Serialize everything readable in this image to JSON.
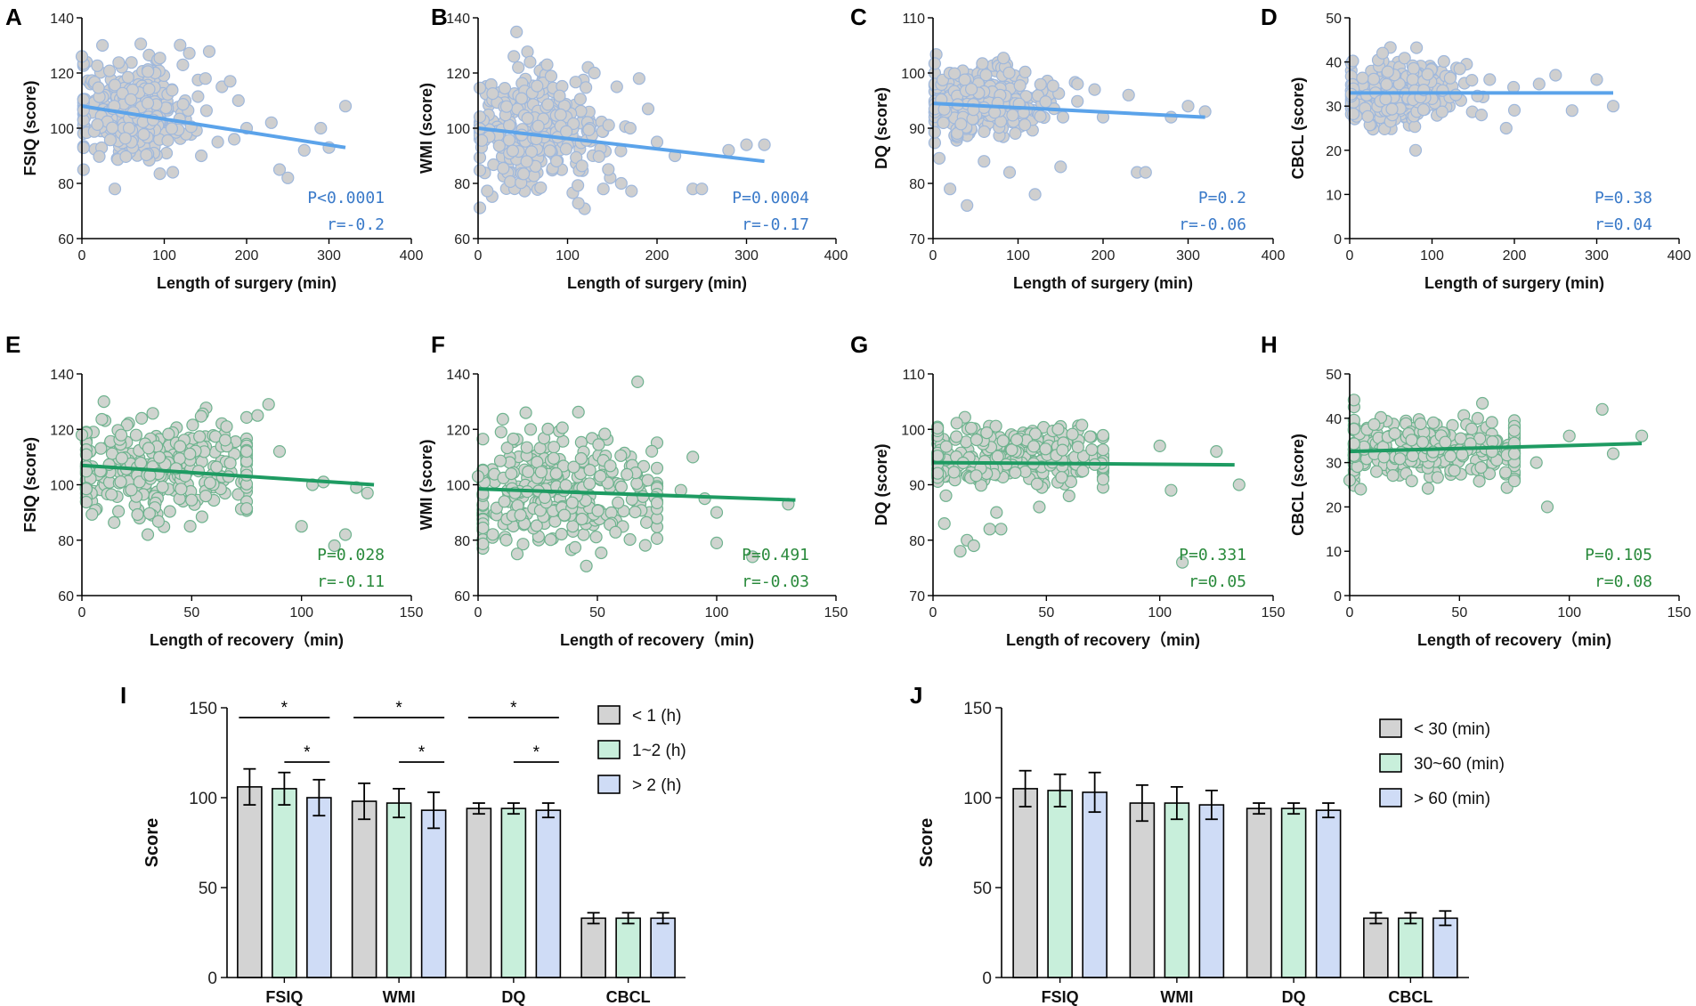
{
  "colors": {
    "blue_line": "#5ba3ea",
    "blue_point_fill": "#cfcfcf",
    "blue_point_stroke": "#9fb8dc",
    "blue_text": "#3a7ac9",
    "green_line": "#1e9b62",
    "green_point_fill": "#cfd4cf",
    "green_point_stroke": "#6fb38f",
    "green_text": "#2a8a3c",
    "bar_gray": "#d3d3d3",
    "bar_green": "#c8efdb",
    "bar_blue": "#cfdcf6"
  },
  "chart_data": [
    {
      "panel": "A",
      "type": "scatter",
      "color_scheme": "blue",
      "xlabel": "Length of surgery (min)",
      "ylabel": "FSIQ (score)",
      "xlim": [
        0,
        400
      ],
      "ylim": [
        60,
        140
      ],
      "xticks": [
        "0",
        "100",
        "200",
        "300",
        "400"
      ],
      "yticks": [
        "60",
        "80",
        "100",
        "120",
        "140"
      ],
      "cloud": {
        "x_mean": 60,
        "x_sd": 35,
        "y_mean": 106,
        "y_sd": 9
      },
      "extra_points": [
        [
          0,
          126
        ],
        [
          25,
          130
        ],
        [
          40,
          78
        ],
        [
          150,
          118
        ],
        [
          170,
          115
        ],
        [
          180,
          117
        ],
        [
          190,
          110
        ],
        [
          200,
          100
        ],
        [
          230,
          102
        ],
        [
          240,
          85
        ],
        [
          250,
          82
        ],
        [
          270,
          92
        ],
        [
          290,
          100
        ],
        [
          300,
          93
        ],
        [
          320,
          108
        ],
        [
          165,
          95
        ],
        [
          145,
          90
        ],
        [
          185,
          96
        ]
      ],
      "fit": {
        "x": [
          0,
          320
        ],
        "y": [
          108,
          93
        ]
      },
      "annotations": [
        "P<0.0001",
        "r=-0.2"
      ]
    },
    {
      "panel": "B",
      "type": "scatter",
      "color_scheme": "blue",
      "xlabel": "Length of surgery (min)",
      "ylabel": "WMI (score)",
      "xlim": [
        0,
        400
      ],
      "ylim": [
        60,
        140
      ],
      "xticks": [
        "0",
        "100",
        "200",
        "300",
        "400"
      ],
      "yticks": [
        "60",
        "80",
        "100",
        "120",
        "140"
      ],
      "cloud": {
        "x_mean": 60,
        "x_sd": 38,
        "y_mean": 98,
        "y_sd": 10
      },
      "extra_points": [
        [
          40,
          126
        ],
        [
          45,
          122
        ],
        [
          130,
          120
        ],
        [
          155,
          115
        ],
        [
          180,
          118
        ],
        [
          190,
          107
        ],
        [
          200,
          95
        ],
        [
          220,
          90
        ],
        [
          240,
          78
        ],
        [
          250,
          78
        ],
        [
          280,
          92
        ],
        [
          300,
          94
        ],
        [
          320,
          94
        ],
        [
          160,
          80
        ],
        [
          140,
          78
        ],
        [
          170,
          100
        ]
      ],
      "fit": {
        "x": [
          0,
          320
        ],
        "y": [
          100,
          88
        ]
      },
      "annotations": [
        "P=0.0004",
        "r=-0.17"
      ]
    },
    {
      "panel": "C",
      "type": "scatter",
      "color_scheme": "blue",
      "xlabel": "Length of surgery (min)",
      "ylabel": "DQ (score)",
      "xlim": [
        0,
        400
      ],
      "ylim": [
        70,
        110
      ],
      "xticks": [
        "0",
        "100",
        "200",
        "300",
        "400"
      ],
      "yticks": [
        "70",
        "80",
        "90",
        "100",
        "110"
      ],
      "cloud": {
        "x_mean": 60,
        "x_sd": 35,
        "y_mean": 95,
        "y_sd": 3
      },
      "extra_points": [
        [
          20,
          79
        ],
        [
          40,
          76
        ],
        [
          120,
          78
        ],
        [
          150,
          83
        ],
        [
          90,
          82
        ],
        [
          60,
          84
        ],
        [
          170,
          98
        ],
        [
          190,
          97
        ],
        [
          200,
          92
        ],
        [
          230,
          96
        ],
        [
          240,
          82
        ],
        [
          250,
          82
        ],
        [
          280,
          92
        ],
        [
          300,
          94
        ],
        [
          320,
          93
        ]
      ],
      "fit": {
        "x": [
          0,
          320
        ],
        "y": [
          94.5,
          92
        ]
      },
      "annotations": [
        "P=0.2",
        "r=-0.06"
      ]
    },
    {
      "panel": "D",
      "type": "scatter",
      "color_scheme": "blue",
      "xlabel": "Length of surgery (min)",
      "ylabel": "CBCL (score)",
      "xlim": [
        0,
        400
      ],
      "ylim": [
        0,
        50
      ],
      "xticks": [
        "0",
        "100",
        "200",
        "300",
        "400"
      ],
      "yticks": [
        "0",
        "10",
        "20",
        "30",
        "40",
        "50"
      ],
      "cloud": {
        "x_mean": 65,
        "x_sd": 40,
        "y_mean": 33,
        "y_sd": 3.5
      },
      "extra_points": [
        [
          80,
          20
        ],
        [
          40,
          42
        ],
        [
          190,
          25
        ],
        [
          230,
          35
        ],
        [
          250,
          37
        ],
        [
          270,
          29
        ],
        [
          300,
          36
        ],
        [
          320,
          30
        ],
        [
          160,
          28
        ],
        [
          170,
          36
        ]
      ],
      "fit": {
        "x": [
          0,
          320
        ],
        "y": [
          33,
          33
        ]
      },
      "annotations": [
        "P=0.38",
        "r=0.04"
      ]
    },
    {
      "panel": "E",
      "type": "scatter",
      "color_scheme": "green",
      "xlabel": "Length of recovery（min)",
      "ylabel": "FSIQ (score)",
      "xlim": [
        0,
        150
      ],
      "ylim": [
        60,
        140
      ],
      "xticks": [
        "0",
        "50",
        "100",
        "150"
      ],
      "yticks": [
        "60",
        "80",
        "100",
        "120",
        "140"
      ],
      "cloud": {
        "x_mean": 35,
        "x_sd": 25,
        "y_mean": 105,
        "y_sd": 9
      },
      "extra_points": [
        [
          0,
          118
        ],
        [
          10,
          130
        ],
        [
          85,
          129
        ],
        [
          80,
          125
        ],
        [
          90,
          112
        ],
        [
          100,
          85
        ],
        [
          115,
          78
        ],
        [
          120,
          82
        ],
        [
          125,
          99
        ],
        [
          130,
          97
        ],
        [
          105,
          100
        ],
        [
          110,
          101
        ],
        [
          30,
          82
        ]
      ],
      "fit": {
        "x": [
          0,
          133
        ],
        "y": [
          107,
          100
        ]
      },
      "annotations": [
        "P=0.028",
        "r=-0.11"
      ]
    },
    {
      "panel": "F",
      "type": "scatter",
      "color_scheme": "green",
      "xlabel": "Length of recovery（min)",
      "ylabel": "WMI (score)",
      "xlim": [
        0,
        150
      ],
      "ylim": [
        60,
        140
      ],
      "xticks": [
        "0",
        "50",
        "100",
        "150"
      ],
      "yticks": [
        "60",
        "80",
        "100",
        "120",
        "140"
      ],
      "cloud": {
        "x_mean": 35,
        "x_sd": 25,
        "y_mean": 97,
        "y_sd": 10
      },
      "extra_points": [
        [
          0,
          103
        ],
        [
          20,
          126
        ],
        [
          22,
          120
        ],
        [
          90,
          110
        ],
        [
          100,
          90
        ],
        [
          100,
          79
        ],
        [
          115,
          74
        ],
        [
          130,
          93
        ],
        [
          85,
          98
        ],
        [
          95,
          95
        ]
      ],
      "fit": {
        "x": [
          0,
          133
        ],
        "y": [
          98.5,
          94.5
        ]
      },
      "annotations": [
        "P=0.491",
        "r=-0.03"
      ]
    },
    {
      "panel": "G",
      "type": "scatter",
      "color_scheme": "green",
      "xlabel": "Length of recovery（min)",
      "ylabel": "DQ (score)",
      "xlim": [
        0,
        150
      ],
      "ylim": [
        70,
        110
      ],
      "xticks": [
        "0",
        "50",
        "100",
        "150"
      ],
      "yticks": [
        "70",
        "80",
        "90",
        "100",
        "110"
      ],
      "cloud": {
        "x_mean": 35,
        "x_sd": 25,
        "y_mean": 95,
        "y_sd": 3
      },
      "extra_points": [
        [
          5,
          83
        ],
        [
          15,
          80
        ],
        [
          12,
          78
        ],
        [
          18,
          79
        ],
        [
          25,
          82
        ],
        [
          30,
          82
        ],
        [
          28,
          85
        ],
        [
          60,
          88
        ],
        [
          110,
          76
        ],
        [
          125,
          96
        ],
        [
          135,
          90
        ],
        [
          100,
          97
        ],
        [
          105,
          89
        ]
      ],
      "fit": {
        "x": [
          0,
          133
        ],
        "y": [
          94,
          93.6
        ]
      },
      "annotations": [
        "P=0.331",
        "r=0.05"
      ]
    },
    {
      "panel": "H",
      "type": "scatter",
      "color_scheme": "green",
      "xlabel": "Length of recovery（min)",
      "ylabel": "CBCL (score)",
      "xlim": [
        0,
        150
      ],
      "ylim": [
        0,
        50
      ],
      "xticks": [
        "0",
        "50",
        "100",
        "150"
      ],
      "yticks": [
        "0",
        "10",
        "20",
        "30",
        "40",
        "50"
      ],
      "cloud": {
        "x_mean": 40,
        "x_sd": 28,
        "y_mean": 33,
        "y_sd": 3.5
      },
      "extra_points": [
        [
          0,
          26
        ],
        [
          90,
          20
        ],
        [
          115,
          42
        ],
        [
          120,
          32
        ],
        [
          133,
          36
        ],
        [
          100,
          36
        ],
        [
          85,
          30
        ],
        [
          5,
          24
        ]
      ],
      "fit": {
        "x": [
          0,
          133
        ],
        "y": [
          32.5,
          34.3
        ]
      },
      "annotations": [
        "P=0.105",
        "r=0.08"
      ]
    },
    {
      "panel": "I",
      "type": "bar",
      "categories": [
        "FSIQ",
        "WMI",
        "DQ",
        "CBCL"
      ],
      "ylabel": "Score",
      "ylim": [
        0,
        150
      ],
      "yticks": [
        "0",
        "50",
        "100",
        "150"
      ],
      "series": [
        {
          "name": "< 1 (h)",
          "values": [
            106,
            98,
            94,
            33
          ],
          "errors": [
            10,
            10,
            3,
            3
          ]
        },
        {
          "name": "1~2 (h)",
          "values": [
            105,
            97,
            94,
            33
          ],
          "errors": [
            9,
            8,
            3,
            3
          ]
        },
        {
          "name": "> 2 (h)",
          "values": [
            100,
            93,
            93,
            33
          ],
          "errors": [
            10,
            10,
            4,
            3
          ]
        }
      ],
      "significance": [
        {
          "category": 0,
          "from": 0,
          "to": 2,
          "level": 1,
          "label": "*"
        },
        {
          "category": 0,
          "from": 1,
          "to": 2,
          "level": 0,
          "label": "*"
        },
        {
          "category": 1,
          "from": 0,
          "to": 2,
          "level": 1,
          "label": "*"
        },
        {
          "category": 1,
          "from": 1,
          "to": 2,
          "level": 0,
          "label": "*"
        },
        {
          "category": 2,
          "from": 0,
          "to": 2,
          "level": 1,
          "label": "*"
        },
        {
          "category": 2,
          "from": 1,
          "to": 2,
          "level": 0,
          "label": "*"
        }
      ]
    },
    {
      "panel": "J",
      "type": "bar",
      "categories": [
        "FSIQ",
        "WMI",
        "DQ",
        "CBCL"
      ],
      "ylabel": "Score",
      "ylim": [
        0,
        150
      ],
      "yticks": [
        "0",
        "50",
        "100",
        "150"
      ],
      "series": [
        {
          "name": "< 30 (min)",
          "values": [
            105,
            97,
            94,
            33
          ],
          "errors": [
            10,
            10,
            3,
            3
          ]
        },
        {
          "name": "30~60 (min)",
          "values": [
            104,
            97,
            94,
            33
          ],
          "errors": [
            9,
            9,
            3,
            3
          ]
        },
        {
          "name": "> 60 (min)",
          "values": [
            103,
            96,
            93,
            33
          ],
          "errors": [
            11,
            8,
            4,
            4
          ]
        }
      ],
      "significance": []
    }
  ]
}
